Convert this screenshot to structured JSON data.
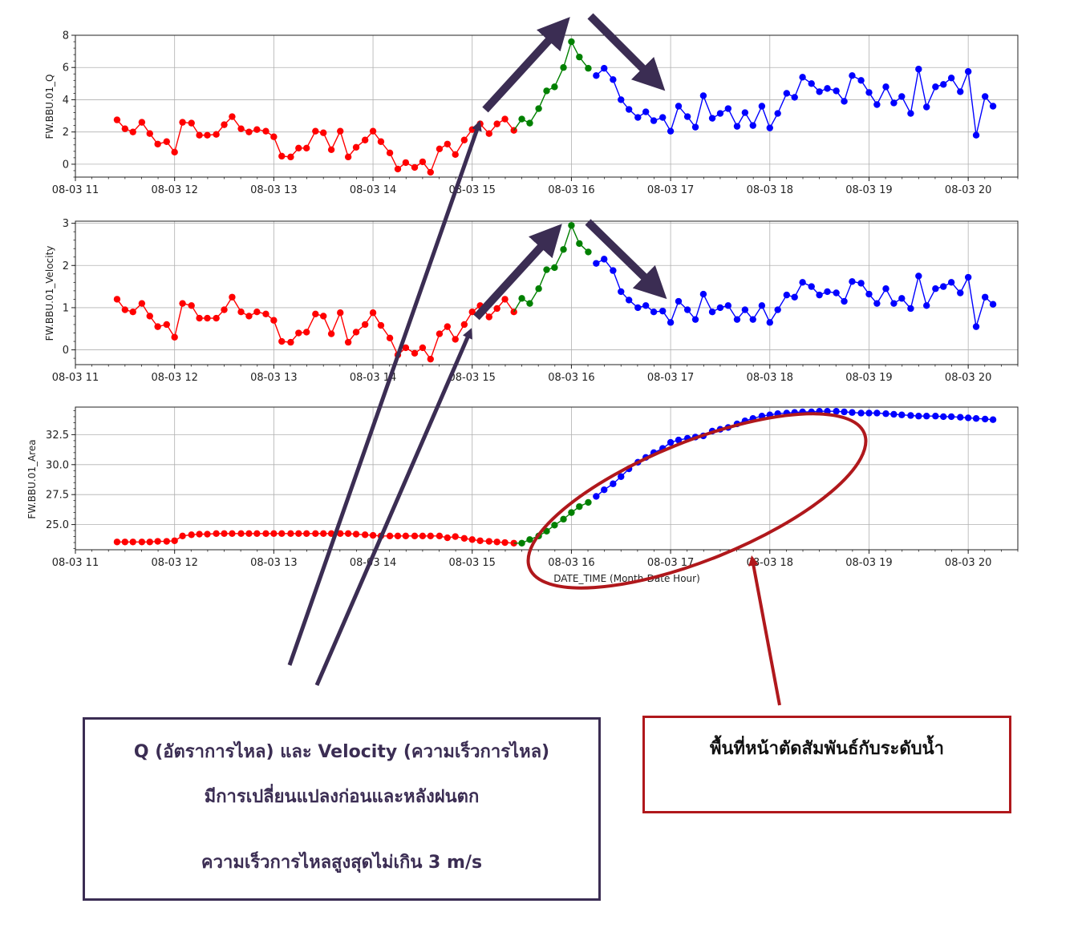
{
  "chart_data": [
    {
      "type": "line",
      "ylabel": "FW.BBU.01_Q",
      "xlabel": "",
      "x_ticks": [
        "08-03 11",
        "08-03 12",
        "08-03 13",
        "08-03 14",
        "08-03 15",
        "08-03 16",
        "08-03 17",
        "08-03 18",
        "08-03 19",
        "08-03 20"
      ],
      "xlim": [
        11.0,
        20.5
      ],
      "ylim": [
        -0.8,
        8.0
      ],
      "y_ticks": [
        0,
        2,
        4,
        6,
        8
      ],
      "grid": true,
      "series": [
        {
          "color": "#ff0000",
          "x": [
            11.42,
            11.5,
            11.58,
            11.67,
            11.75,
            11.83,
            11.92,
            12.0,
            12.08,
            12.17,
            12.25,
            12.33,
            12.42,
            12.5,
            12.58,
            12.67,
            12.75,
            12.83,
            12.92,
            13.0,
            13.08,
            13.17,
            13.25,
            13.33,
            13.42,
            13.5,
            13.58,
            13.67,
            13.75,
            13.83,
            13.92,
            14.0,
            14.08,
            14.17,
            14.25,
            14.33,
            14.42,
            14.5,
            14.58,
            14.67,
            14.75,
            14.83,
            14.92,
            15.0,
            15.08,
            15.17,
            15.25,
            15.33,
            15.42
          ],
          "values": [
            2.75,
            2.2,
            2.0,
            2.6,
            1.9,
            1.25,
            1.4,
            0.75,
            2.6,
            2.55,
            1.8,
            1.8,
            1.85,
            2.45,
            2.95,
            2.2,
            2.0,
            2.15,
            2.05,
            1.7,
            0.5,
            0.45,
            1.0,
            1.0,
            2.05,
            1.95,
            0.9,
            2.05,
            0.45,
            1.05,
            1.5,
            2.05,
            1.4,
            0.7,
            -0.3,
            0.1,
            -0.2,
            0.15,
            -0.5,
            0.95,
            1.25,
            0.6,
            1.5,
            2.15,
            2.5,
            1.9,
            2.5,
            2.8,
            2.1
          ]
        },
        {
          "color": "#008000",
          "x": [
            15.5,
            15.58,
            15.67,
            15.75,
            15.83,
            15.92,
            16.0,
            16.08,
            16.17
          ],
          "values": [
            2.8,
            2.55,
            3.45,
            4.55,
            4.8,
            6.0,
            7.6,
            6.65,
            5.95
          ]
        },
        {
          "color": "#0000ff",
          "x": [
            16.25,
            16.33,
            16.42,
            16.5,
            16.58,
            16.67,
            16.75,
            16.83,
            16.92,
            17.0,
            17.08,
            17.17,
            17.25,
            17.33,
            17.42,
            17.5,
            17.58,
            17.67,
            17.75,
            17.83,
            17.92,
            18.0,
            18.08,
            18.17,
            18.25,
            18.33,
            18.42,
            18.5,
            18.58,
            18.67,
            18.75,
            18.83,
            18.92,
            19.0,
            19.08,
            19.17,
            19.25,
            19.33,
            19.42,
            19.5,
            19.58,
            19.67,
            19.75,
            19.83,
            19.92,
            20.0,
            20.08,
            20.17,
            20.25
          ],
          "values": [
            5.5,
            5.95,
            5.25,
            4.0,
            3.4,
            2.9,
            3.25,
            2.7,
            2.9,
            2.05,
            3.6,
            2.95,
            2.3,
            4.25,
            2.85,
            3.15,
            3.45,
            2.35,
            3.2,
            2.4,
            3.6,
            2.25,
            3.15,
            4.4,
            4.15,
            5.4,
            5.0,
            4.5,
            4.7,
            4.55,
            3.9,
            5.5,
            5.2,
            4.45,
            3.7,
            4.8,
            3.8,
            4.2,
            3.15,
            5.9,
            3.55,
            4.8,
            4.95,
            5.35,
            4.5,
            5.75,
            1.8,
            4.2,
            3.6
          ]
        }
      ]
    },
    {
      "type": "line",
      "ylabel": "FW.BBU.01_Velocity",
      "xlabel": "",
      "x_ticks": [
        "08-03 11",
        "08-03 12",
        "08-03 13",
        "08-03 14",
        "08-03 15",
        "08-03 16",
        "08-03 17",
        "08-03 18",
        "08-03 19",
        "08-03 20"
      ],
      "xlim": [
        11.0,
        20.5
      ],
      "ylim": [
        -0.35,
        3.05
      ],
      "y_ticks": [
        0,
        1,
        2,
        3
      ],
      "grid": true,
      "series": [
        {
          "color": "#ff0000",
          "x": [
            11.42,
            11.5,
            11.58,
            11.67,
            11.75,
            11.83,
            11.92,
            12.0,
            12.08,
            12.17,
            12.25,
            12.33,
            12.42,
            12.5,
            12.58,
            12.67,
            12.75,
            12.83,
            12.92,
            13.0,
            13.08,
            13.17,
            13.25,
            13.33,
            13.42,
            13.5,
            13.58,
            13.67,
            13.75,
            13.83,
            13.92,
            14.0,
            14.08,
            14.17,
            14.25,
            14.33,
            14.42,
            14.5,
            14.58,
            14.67,
            14.75,
            14.83,
            14.92,
            15.0,
            15.08,
            15.17,
            15.25,
            15.33,
            15.42
          ],
          "values": [
            1.2,
            0.95,
            0.9,
            1.1,
            0.8,
            0.55,
            0.6,
            0.3,
            1.1,
            1.05,
            0.75,
            0.75,
            0.75,
            0.95,
            1.25,
            0.9,
            0.8,
            0.9,
            0.85,
            0.7,
            0.2,
            0.18,
            0.4,
            0.42,
            0.85,
            0.8,
            0.38,
            0.88,
            0.18,
            0.42,
            0.6,
            0.88,
            0.58,
            0.28,
            -0.12,
            0.05,
            -0.08,
            0.05,
            -0.22,
            0.38,
            0.55,
            0.25,
            0.6,
            0.9,
            1.05,
            0.78,
            0.98,
            1.2,
            0.9
          ]
        },
        {
          "color": "#008000",
          "x": [
            15.5,
            15.58,
            15.67,
            15.75,
            15.83,
            15.92,
            16.0,
            16.08,
            16.17
          ],
          "values": [
            1.22,
            1.1,
            1.45,
            1.9,
            1.95,
            2.38,
            2.95,
            2.52,
            2.32
          ]
        },
        {
          "color": "#0000ff",
          "x": [
            16.25,
            16.33,
            16.42,
            16.5,
            16.58,
            16.67,
            16.75,
            16.83,
            16.92,
            17.0,
            17.08,
            17.17,
            17.25,
            17.33,
            17.42,
            17.5,
            17.58,
            17.67,
            17.75,
            17.83,
            17.92,
            18.0,
            18.08,
            18.17,
            18.25,
            18.33,
            18.42,
            18.5,
            18.58,
            18.67,
            18.75,
            18.83,
            18.92,
            19.0,
            19.08,
            19.17,
            19.25,
            19.33,
            19.42,
            19.5,
            19.58,
            19.67,
            19.75,
            19.83,
            19.92,
            20.0,
            20.08,
            20.17,
            20.25
          ],
          "values": [
            2.05,
            2.15,
            1.88,
            1.38,
            1.18,
            1.0,
            1.05,
            0.9,
            0.92,
            0.65,
            1.15,
            0.95,
            0.72,
            1.32,
            0.9,
            1.0,
            1.05,
            0.72,
            0.95,
            0.72,
            1.05,
            0.65,
            0.95,
            1.3,
            1.25,
            1.6,
            1.5,
            1.3,
            1.38,
            1.35,
            1.15,
            1.62,
            1.58,
            1.32,
            1.1,
            1.45,
            1.1,
            1.22,
            0.98,
            1.75,
            1.05,
            1.45,
            1.5,
            1.6,
            1.35,
            1.72,
            0.55,
            1.25,
            1.08
          ]
        }
      ]
    },
    {
      "type": "line",
      "ylabel": "FW.BBU.01_Area",
      "xlabel": "DATE_TIME (Month-Date Hour)",
      "x_ticks": [
        "08-03 11",
        "08-03 12",
        "08-03 13",
        "08-03 14",
        "08-03 15",
        "08-03 16",
        "08-03 17",
        "08-03 18",
        "08-03 19",
        "08-03 20"
      ],
      "xlim": [
        11.0,
        20.5
      ],
      "ylim": [
        22.9,
        34.8
      ],
      "y_ticks": [
        "25.0",
        "27.5",
        "30.0",
        "32.5"
      ],
      "grid": true,
      "series": [
        {
          "color": "#ff0000",
          "x": [
            11.42,
            11.5,
            11.58,
            11.67,
            11.75,
            11.83,
            11.92,
            12.0,
            12.08,
            12.17,
            12.25,
            12.33,
            12.42,
            12.5,
            12.58,
            12.67,
            12.75,
            12.83,
            12.92,
            13.0,
            13.08,
            13.17,
            13.25,
            13.33,
            13.42,
            13.5,
            13.58,
            13.67,
            13.75,
            13.83,
            13.92,
            14.0,
            14.08,
            14.17,
            14.25,
            14.33,
            14.42,
            14.5,
            14.58,
            14.67,
            14.75,
            14.83,
            14.92,
            15.0,
            15.08,
            15.17,
            15.25,
            15.33,
            15.42
          ],
          "values": [
            23.55,
            23.55,
            23.55,
            23.55,
            23.55,
            23.6,
            23.6,
            23.65,
            24.05,
            24.15,
            24.2,
            24.2,
            24.25,
            24.25,
            24.25,
            24.25,
            24.25,
            24.25,
            24.25,
            24.25,
            24.25,
            24.25,
            24.25,
            24.25,
            24.25,
            24.25,
            24.25,
            24.25,
            24.25,
            24.2,
            24.15,
            24.1,
            24.05,
            24.05,
            24.05,
            24.05,
            24.05,
            24.05,
            24.05,
            24.05,
            23.9,
            24.0,
            23.85,
            23.75,
            23.65,
            23.6,
            23.55,
            23.5,
            23.45
          ]
        },
        {
          "color": "#008000",
          "x": [
            15.5,
            15.58,
            15.67,
            15.75,
            15.83,
            15.92,
            16.0,
            16.08,
            16.17
          ],
          "values": [
            23.45,
            23.75,
            24.05,
            24.45,
            24.95,
            25.45,
            26.0,
            26.5,
            26.85
          ]
        },
        {
          "color": "#0000ff",
          "x": [
            16.25,
            16.33,
            16.42,
            16.5,
            16.58,
            16.67,
            16.75,
            16.83,
            16.92,
            17.0,
            17.08,
            17.17,
            17.25,
            17.33,
            17.42,
            17.5,
            17.58,
            17.67,
            17.75,
            17.83,
            17.92,
            18.0,
            18.08,
            18.17,
            18.25,
            18.33,
            18.42,
            18.5,
            18.58,
            18.67,
            18.75,
            18.83,
            18.92,
            19.0,
            19.08,
            19.17,
            19.25,
            19.33,
            19.42,
            19.5,
            19.58,
            19.67,
            19.75,
            19.83,
            19.92,
            20.0,
            20.08,
            20.17,
            20.25
          ],
          "values": [
            27.35,
            27.9,
            28.4,
            29.0,
            29.65,
            30.2,
            30.6,
            31.0,
            31.35,
            31.85,
            32.05,
            32.2,
            32.3,
            32.4,
            32.8,
            32.95,
            33.1,
            33.4,
            33.65,
            33.85,
            34.05,
            34.15,
            34.25,
            34.3,
            34.35,
            34.4,
            34.4,
            34.45,
            34.45,
            34.45,
            34.4,
            34.35,
            34.3,
            34.3,
            34.3,
            34.25,
            34.2,
            34.15,
            34.1,
            34.05,
            34.05,
            34.05,
            34.0,
            34.0,
            33.95,
            33.9,
            33.85,
            33.8,
            33.75
          ]
        }
      ]
    }
  ],
  "annotations": {
    "box_left": {
      "line1": "Q (อัตราการไหล) และ Velocity (ความเร็วการไหล)",
      "line2": "มีการเปลี่ยนแปลงก่อนและหลังฝนตก",
      "line3": "ความเร็วการไหลสูงสุดไม่เกิน 3 m/s",
      "border_color": "#3b2d53"
    },
    "box_right": {
      "line1": "พื้นที่หน้าตัดสัมพันธ์กับระดับน้ำ",
      "border_color": "#b0181c"
    },
    "arrow_color_purple": "#3b2d53",
    "arrow_color_red": "#b0181c"
  }
}
